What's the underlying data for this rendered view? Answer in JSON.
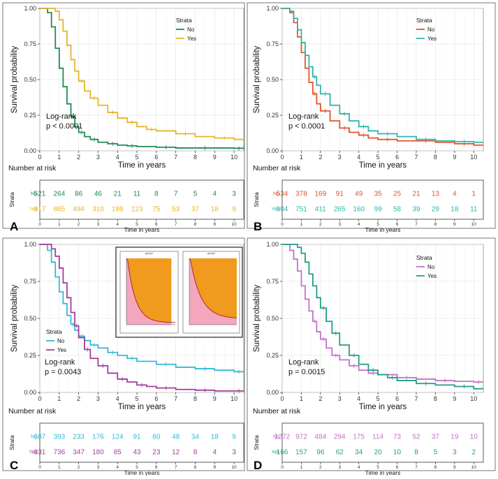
{
  "figure": {
    "xlabel": "Time in years",
    "ylabel": "Survival probability",
    "legend_title": "Strata",
    "risk_title": "Number at risk",
    "risk_ylabel": "Strata",
    "risk_xlabel": "Time in years",
    "logrank_label": "Log-rank"
  },
  "chart_data": [
    {
      "panel": "A",
      "type": "line",
      "xlim": [
        0,
        10.5
      ],
      "ylim": [
        0,
        1
      ],
      "x_ticks": [
        0,
        1,
        2,
        3,
        4,
        5,
        6,
        7,
        8,
        9,
        10
      ],
      "y_ticks": [
        "0.00",
        "0.25",
        "0.50",
        "0.75",
        "1.00"
      ],
      "pvalue": "p < 0.0001",
      "legend_position": "top-right",
      "series": [
        {
          "name": "No",
          "color": "#1f8a55",
          "x": [
            0,
            0.2,
            0.4,
            0.6,
            0.8,
            1,
            1.2,
            1.4,
            1.6,
            1.8,
            2,
            2.3,
            2.6,
            3,
            3.5,
            4,
            4.5,
            5,
            6,
            7,
            8,
            9,
            10,
            10.5
          ],
          "y": [
            1,
            1,
            0.97,
            0.87,
            0.72,
            0.58,
            0.45,
            0.33,
            0.24,
            0.17,
            0.13,
            0.1,
            0.08,
            0.06,
            0.05,
            0.04,
            0.035,
            0.03,
            0.025,
            0.02,
            0.02,
            0.02,
            0.018,
            0.018
          ]
        },
        {
          "name": "Yes",
          "color": "#e3b62a",
          "x": [
            0,
            0.6,
            0.8,
            1,
            1.2,
            1.4,
            1.6,
            1.8,
            2,
            2.3,
            2.6,
            3,
            3.5,
            4,
            4.5,
            5,
            5.5,
            6,
            7,
            8,
            9,
            10,
            10.5
          ],
          "y": [
            1,
            1,
            0.98,
            0.92,
            0.84,
            0.74,
            0.64,
            0.56,
            0.49,
            0.42,
            0.37,
            0.32,
            0.27,
            0.23,
            0.2,
            0.17,
            0.15,
            0.14,
            0.12,
            0.1,
            0.09,
            0.08,
            0.078
          ]
        }
      ],
      "risk": [
        {
          "name": "No",
          "color": "#1f8a55",
          "values": [
            521,
            264,
            86,
            46,
            21,
            11,
            8,
            7,
            5,
            4,
            3
          ]
        },
        {
          "name": "Yes",
          "color": "#e3b62a",
          "values": [
            917,
            865,
            494,
            310,
            188,
            123,
            75,
            53,
            37,
            18,
            9
          ]
        }
      ]
    },
    {
      "panel": "B",
      "type": "line",
      "xlim": [
        0,
        10.5
      ],
      "ylim": [
        0,
        1
      ],
      "x_ticks": [
        0,
        1,
        2,
        3,
        4,
        5,
        6,
        7,
        8,
        9,
        10
      ],
      "y_ticks": [
        "0.00",
        "0.25",
        "0.50",
        "0.75",
        "1.00"
      ],
      "pvalue": "p < 0.0001",
      "legend_position": "top-right",
      "series": [
        {
          "name": "No",
          "color": "#e2542a",
          "x": [
            0,
            0.2,
            0.4,
            0.6,
            0.8,
            1,
            1.2,
            1.4,
            1.6,
            1.8,
            2,
            2.5,
            3,
            3.5,
            4,
            4.5,
            5,
            6,
            7,
            8,
            9,
            10,
            10.5
          ],
          "y": [
            1,
            1,
            0.97,
            0.9,
            0.8,
            0.69,
            0.58,
            0.48,
            0.4,
            0.33,
            0.28,
            0.21,
            0.16,
            0.13,
            0.11,
            0.09,
            0.08,
            0.07,
            0.07,
            0.06,
            0.05,
            0.04,
            0.04
          ]
        },
        {
          "name": "Yes",
          "color": "#2fb5a8",
          "x": [
            0,
            0.2,
            0.4,
            0.6,
            0.8,
            1,
            1.2,
            1.4,
            1.6,
            1.8,
            2,
            2.5,
            3,
            3.5,
            4,
            4.5,
            5,
            6,
            7,
            8,
            9,
            10,
            10.5
          ],
          "y": [
            1,
            1,
            0.98,
            0.93,
            0.85,
            0.76,
            0.67,
            0.59,
            0.52,
            0.46,
            0.4,
            0.32,
            0.26,
            0.21,
            0.17,
            0.14,
            0.12,
            0.1,
            0.08,
            0.07,
            0.065,
            0.06,
            0.06
          ]
        }
      ],
      "risk": [
        {
          "name": "No",
          "color": "#e2542a",
          "values": [
            534,
            378,
            169,
            91,
            49,
            35,
            25,
            21,
            13,
            4,
            1
          ]
        },
        {
          "name": "Yes",
          "color": "#2fb5a8",
          "values": [
            904,
            751,
            411,
            265,
            160,
            99,
            58,
            39,
            29,
            18,
            11
          ]
        }
      ]
    },
    {
      "panel": "C",
      "type": "line",
      "xlim": [
        0,
        10.5
      ],
      "ylim": [
        0,
        1
      ],
      "x_ticks": [
        0,
        1,
        2,
        3,
        4,
        5,
        6,
        7,
        8,
        9,
        10
      ],
      "y_ticks": [
        "0.00",
        "0.25",
        "0.50",
        "0.75",
        "1.00"
      ],
      "pvalue": "p = 0.0043",
      "legend_position": "bottom-left",
      "inset_titles": [
        "group1",
        "group2"
      ],
      "series": [
        {
          "name": "No",
          "color": "#35b8d6",
          "x": [
            0,
            0.2,
            0.4,
            0.6,
            0.8,
            1,
            1.2,
            1.4,
            1.6,
            1.8,
            2,
            2.3,
            2.6,
            3,
            3.5,
            4,
            4.5,
            5,
            6,
            7,
            8,
            9,
            10,
            10.5
          ],
          "y": [
            1,
            1,
            0.96,
            0.88,
            0.78,
            0.68,
            0.6,
            0.52,
            0.46,
            0.42,
            0.38,
            0.35,
            0.32,
            0.3,
            0.27,
            0.25,
            0.23,
            0.21,
            0.19,
            0.17,
            0.16,
            0.15,
            0.14,
            0.14
          ]
        },
        {
          "name": "Yes",
          "color": "#a23d9a",
          "x": [
            0,
            0.4,
            0.6,
            0.8,
            1,
            1.2,
            1.4,
            1.6,
            1.8,
            2,
            2.3,
            2.6,
            3,
            3.5,
            4,
            4.5,
            5,
            5.5,
            6,
            7,
            8,
            9,
            10,
            10.5
          ],
          "y": [
            1,
            1,
            0.97,
            0.92,
            0.84,
            0.74,
            0.64,
            0.54,
            0.45,
            0.37,
            0.29,
            0.23,
            0.18,
            0.13,
            0.09,
            0.07,
            0.05,
            0.04,
            0.03,
            0.02,
            0.015,
            0.01,
            0.01,
            0.01
          ]
        }
      ],
      "risk": [
        {
          "name": "No",
          "color": "#35b8d6",
          "values": [
            607,
            393,
            233,
            176,
            124,
            91,
            60,
            48,
            34,
            18,
            9
          ]
        },
        {
          "name": "Yes",
          "color": "#a23d9a",
          "values": [
            831,
            736,
            347,
            180,
            85,
            43,
            23,
            12,
            8,
            4,
            3
          ]
        }
      ]
    },
    {
      "panel": "D",
      "type": "line",
      "xlim": [
        0,
        10.5
      ],
      "ylim": [
        0,
        1
      ],
      "x_ticks": [
        0,
        1,
        2,
        3,
        4,
        5,
        6,
        7,
        8,
        9,
        10
      ],
      "y_ticks": [
        "0.00",
        "0.25",
        "0.50",
        "0.75",
        "1.00"
      ],
      "pvalue": "p = 0.0015",
      "legend_position": "top-right",
      "series": [
        {
          "name": "No",
          "color": "#c272c8",
          "x": [
            0,
            0.2,
            0.4,
            0.6,
            0.8,
            1,
            1.2,
            1.4,
            1.6,
            1.8,
            2,
            2.3,
            2.6,
            3,
            3.5,
            4,
            4.5,
            5,
            6,
            7,
            8,
            9,
            10,
            10.5
          ],
          "y": [
            1,
            1,
            0.96,
            0.9,
            0.82,
            0.72,
            0.63,
            0.55,
            0.48,
            0.41,
            0.36,
            0.3,
            0.25,
            0.22,
            0.18,
            0.15,
            0.13,
            0.12,
            0.1,
            0.09,
            0.08,
            0.075,
            0.07,
            0.07
          ]
        },
        {
          "name": "Yes",
          "color": "#1f9e85",
          "x": [
            0,
            0.6,
            0.8,
            1,
            1.2,
            1.4,
            1.6,
            1.8,
            2,
            2.3,
            2.6,
            3,
            3.5,
            4,
            4.5,
            5,
            5.5,
            6,
            7,
            8,
            9,
            10,
            10.5
          ],
          "y": [
            1,
            1,
            0.98,
            0.94,
            0.88,
            0.8,
            0.72,
            0.64,
            0.57,
            0.48,
            0.4,
            0.32,
            0.25,
            0.19,
            0.15,
            0.12,
            0.1,
            0.08,
            0.06,
            0.05,
            0.04,
            0.025,
            0.025
          ]
        }
      ],
      "risk": [
        {
          "name": "No",
          "color": "#c272c8",
          "values": [
            1272,
            972,
            484,
            294,
            175,
            114,
            73,
            52,
            37,
            19,
            10
          ]
        },
        {
          "name": "Yes",
          "color": "#1f9e85",
          "values": [
            166,
            157,
            96,
            62,
            34,
            20,
            10,
            8,
            5,
            3,
            2
          ]
        }
      ]
    }
  ]
}
